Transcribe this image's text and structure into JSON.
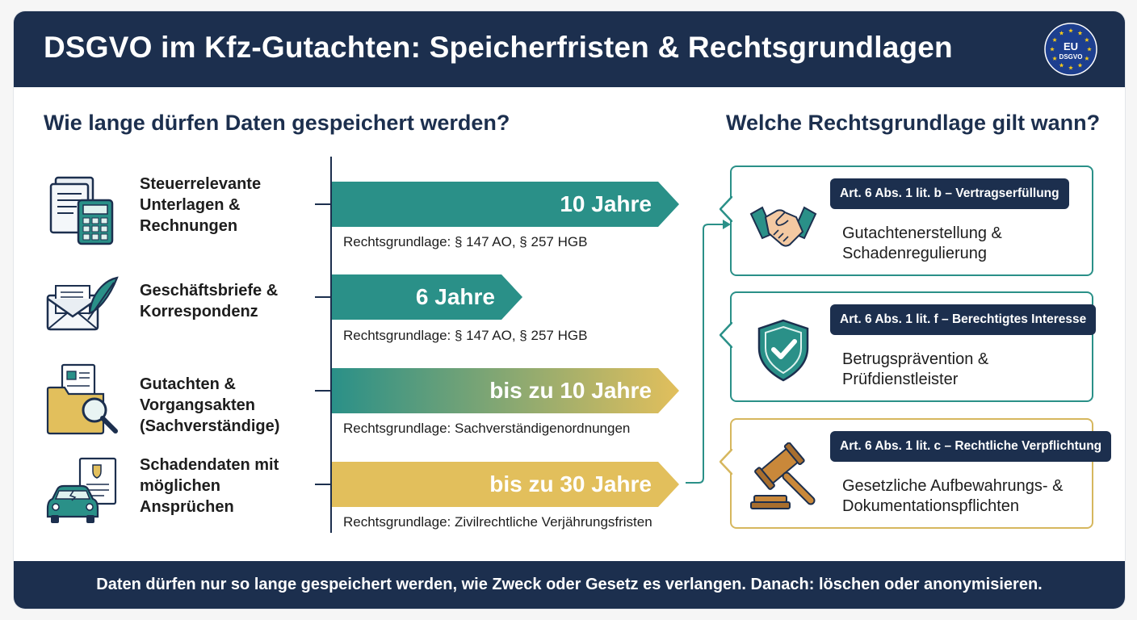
{
  "header": {
    "title": "DSGVO im Kfz-Gutachten: Speicherfristen & Rechtsgrundlagen",
    "badge_top": "EU",
    "badge_bottom": "DSGVO"
  },
  "left_section": {
    "title": "Wie lange dürfen Daten gespeichert werden?",
    "categories": [
      {
        "label": "Steuerrelevante\nUnterlagen &\nRechnungen",
        "icon": "documents-calculator-icon"
      },
      {
        "label": "Geschäftsbriefe &\nKorrespondenz",
        "icon": "envelope-feather-icon"
      },
      {
        "label": "Gutachten &\nVorgangsakten\n(Sachverständige)",
        "icon": "folder-magnifier-icon"
      },
      {
        "label": "Schadendaten mit\nmöglichen\nAnsprüchen",
        "icon": "car-damage-document-icon"
      }
    ],
    "periods": [
      {
        "label": "10 Jahre",
        "years": 10,
        "basis": "Rechtsgrundlage: § 147 AO, § 257 HGB",
        "color": "#2a9088"
      },
      {
        "label": "6 Jahre",
        "years": 6,
        "basis": "Rechtsgrundlage: § 147 AO, § 257 HGB",
        "color": "#2a9088"
      },
      {
        "label": "bis zu 10 Jahre",
        "years": 10,
        "basis": "Rechtsgrundlage: Sachverständigenordnungen",
        "color_from": "#2a9088",
        "color_to": "#e2bf5c"
      },
      {
        "label": "bis zu 30 Jahre",
        "years": 30,
        "basis": "Rechtsgrundlage: Zivilrechtliche Verjährungsfristen",
        "color": "#e2bf5c"
      }
    ]
  },
  "right_section": {
    "title": "Welche Rechtsgrundlage gilt wann?",
    "cards": [
      {
        "article": "Art. 6 Abs. 1 lit. b – Vertragserfüllung",
        "description": "Gutachtenerstellung &\nSchadenregulierung",
        "icon": "handshake-icon",
        "border": "#2a9088"
      },
      {
        "article": "Art. 6 Abs. 1 lit. f – Berechtigtes Interesse",
        "description": "Betrugsprävention &\nPrüfdienstleister",
        "icon": "shield-check-icon",
        "border": "#2a9088"
      },
      {
        "article": "Art. 6 Abs. 1 lit. c – Rechtliche Verpflichtung",
        "description": "Gesetzliche Aufbewahrungs- &\nDokumentationspflichten",
        "icon": "gavel-icon",
        "border": "#d6b75e"
      }
    ]
  },
  "footer": {
    "text": "Daten dürfen nur so lange gespeichert werden, wie Zweck oder Gesetz es verlangen. Danach: löschen oder anonymisieren."
  },
  "colors": {
    "navy": "#1c2f4e",
    "teal": "#2a9088",
    "gold": "#e2bf5c"
  }
}
